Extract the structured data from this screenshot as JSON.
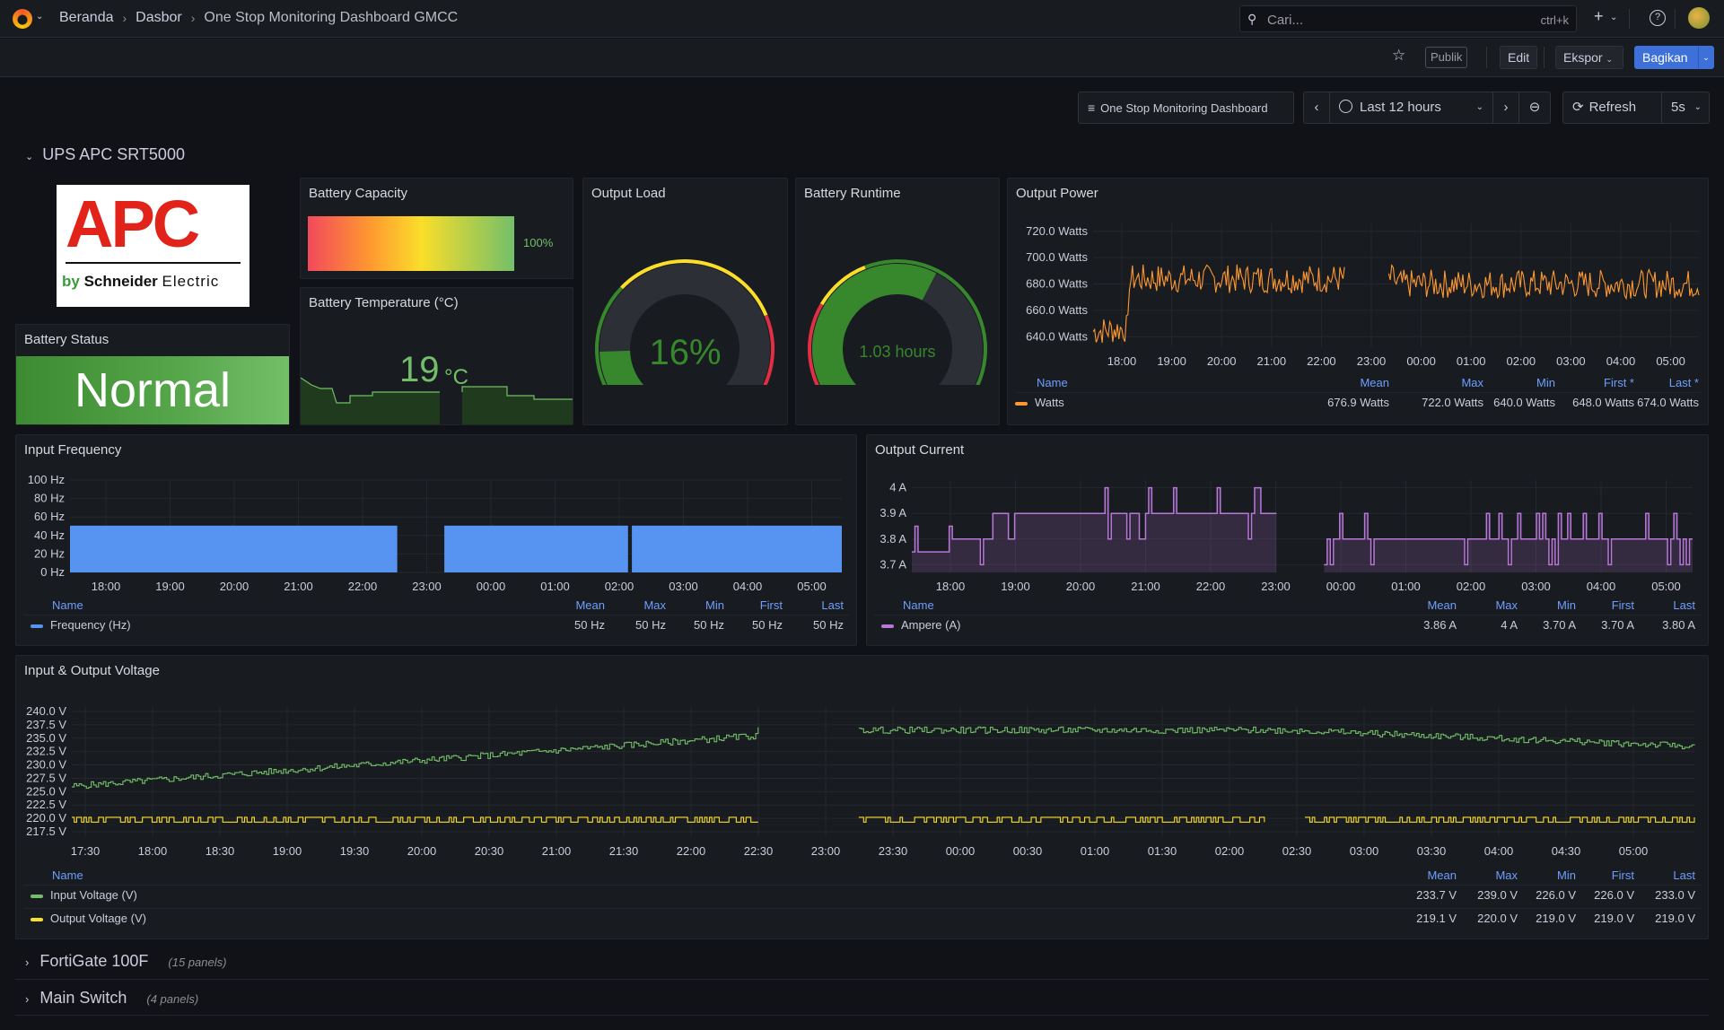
{
  "header": {
    "breadcrumbs": [
      "Beranda",
      "Dasbor",
      "One Stop Monitoring Dashboard GMCC"
    ],
    "search_placeholder": "Cari...",
    "search_shortcut": "ctrl+k"
  },
  "toolbar": {
    "public_badge": "Publik",
    "edit_label": "Edit",
    "export_label": "Ekspor",
    "share_label": "Bagikan"
  },
  "controls": {
    "dashboard_link": "One Stop Monitoring Dashboard",
    "time_range": "Last 12 hours",
    "refresh_label": "Refresh",
    "refresh_interval": "5s"
  },
  "rows": [
    {
      "title": "UPS APC SRT5000",
      "collapsed": false
    },
    {
      "title": "FortiGate 100F",
      "subtitle": "(15 panels)",
      "collapsed": true
    },
    {
      "title": "Main Switch",
      "subtitle": "(4 panels)",
      "collapsed": true
    }
  ],
  "logo": {
    "brand": "APC",
    "tagline_by": "by",
    "tagline_company": "Schneider",
    "tagline_suffix": "Electric"
  },
  "panels": {
    "battery_status": {
      "title": "Battery Status",
      "value": "Normal",
      "color": "#37872d"
    },
    "battery_capacity": {
      "title": "Battery Capacity",
      "value": "100%",
      "fraction": 1.0
    },
    "battery_temperature": {
      "title": "Battery Temperature (°C)",
      "value": "19",
      "unit": "°C",
      "color": "#73bf69"
    },
    "output_load": {
      "title": "Output Load",
      "value": "16%",
      "fraction": 0.16,
      "color": "#37872d"
    },
    "battery_runtime": {
      "title": "Battery Runtime",
      "value": "1.03 hours",
      "fraction": 0.6,
      "color": "#37872d"
    },
    "output_power": {
      "title": "Output Power",
      "y_ticks": [
        "720.0 Watts",
        "700.0 Watts",
        "680.0 Watts",
        "660.0 Watts",
        "640.0 Watts"
      ],
      "x_ticks": [
        "18:00",
        "19:00",
        "20:00",
        "21:00",
        "22:00",
        "23:00",
        "00:00",
        "01:00",
        "02:00",
        "03:00",
        "04:00",
        "05:00"
      ],
      "legend_headers": [
        "Name",
        "Last *",
        "First *",
        "Min",
        "Max",
        "Mean"
      ],
      "series": [
        {
          "name": "Watts",
          "color": "#ff9830",
          "stats": [
            "674.0 Watts",
            "648.0 Watts",
            "640.0 Watts",
            "722.0 Watts",
            "676.9 Watts"
          ]
        }
      ]
    },
    "input_frequency": {
      "title": "Input Frequency",
      "y_ticks": [
        "100 Hz",
        "80 Hz",
        "60 Hz",
        "40 Hz",
        "20 Hz",
        "0 Hz"
      ],
      "x_ticks": [
        "18:00",
        "19:00",
        "20:00",
        "21:00",
        "22:00",
        "23:00",
        "00:00",
        "01:00",
        "02:00",
        "03:00",
        "04:00",
        "05:00"
      ],
      "legend_headers": [
        "Name",
        "Last",
        "First",
        "Min",
        "Max",
        "Mean"
      ],
      "series": [
        {
          "name": "Frequency (Hz)",
          "color": "#5794f2",
          "stats": [
            "50 Hz",
            "50 Hz",
            "50 Hz",
            "50 Hz",
            "50 Hz"
          ]
        }
      ]
    },
    "output_current": {
      "title": "Output Current",
      "y_ticks": [
        "4 A",
        "3.9 A",
        "3.8 A",
        "3.7 A"
      ],
      "x_ticks": [
        "18:00",
        "19:00",
        "20:00",
        "21:00",
        "22:00",
        "23:00",
        "00:00",
        "01:00",
        "02:00",
        "03:00",
        "04:00",
        "05:00"
      ],
      "legend_headers": [
        "Name",
        "Last",
        "First",
        "Min",
        "Max",
        "Mean"
      ],
      "series": [
        {
          "name": "Ampere (A)",
          "color": "#b877d9",
          "stats": [
            "3.80 A",
            "3.70 A",
            "3.70 A",
            "4 A",
            "3.86 A"
          ]
        }
      ]
    },
    "voltage": {
      "title": "Input & Output Voltage",
      "y_ticks": [
        "240.0 V",
        "237.5 V",
        "235.0 V",
        "232.5 V",
        "230.0 V",
        "227.5 V",
        "225.0 V",
        "222.5 V",
        "220.0 V",
        "217.5 V"
      ],
      "x_ticks": [
        "17:30",
        "18:00",
        "18:30",
        "19:00",
        "19:30",
        "20:00",
        "20:30",
        "21:00",
        "21:30",
        "22:00",
        "22:30",
        "23:00",
        "23:30",
        "00:00",
        "00:30",
        "01:00",
        "01:30",
        "02:00",
        "02:30",
        "03:00",
        "03:30",
        "04:00",
        "04:30",
        "05:00"
      ],
      "legend_headers": [
        "Name",
        "Last",
        "First",
        "Min",
        "Max",
        "Mean"
      ],
      "series": [
        {
          "name": "Input Voltage (V)",
          "color": "#73bf69",
          "stats": [
            "233.0 V",
            "226.0 V",
            "226.0 V",
            "239.0 V",
            "233.7 V"
          ]
        },
        {
          "name": "Output Voltage (V)",
          "color": "#fade2a",
          "stats": [
            "219.0 V",
            "219.0 V",
            "219.0 V",
            "220.0 V",
            "219.1 V"
          ]
        }
      ]
    }
  },
  "chart_data": [
    {
      "type": "line",
      "title": "Output Power",
      "ylabel": "Watts",
      "ylim": [
        630,
        730
      ],
      "x": [
        "18:00",
        "19:00",
        "20:00",
        "21:00",
        "22:00",
        "23:00",
        "00:00",
        "01:00",
        "02:00",
        "03:00",
        "04:00",
        "05:00"
      ],
      "series": [
        {
          "name": "Watts",
          "values": [
            648,
            688,
            685,
            682,
            684,
            null,
            null,
            682,
            676,
            674,
            678,
            674
          ]
        }
      ]
    },
    {
      "type": "area",
      "title": "Input Frequency",
      "ylim": [
        0,
        100
      ],
      "x": [
        "18:00",
        "19:00",
        "20:00",
        "21:00",
        "22:00",
        "23:00",
        "00:00",
        "01:00",
        "02:00",
        "03:00",
        "04:00",
        "05:00"
      ],
      "series": [
        {
          "name": "Frequency (Hz)",
          "values": [
            50,
            50,
            50,
            50,
            50,
            50,
            null,
            50,
            50,
            50,
            50,
            50
          ]
        }
      ]
    },
    {
      "type": "line",
      "title": "Output Current",
      "ylim": [
        3.67,
        4.03
      ],
      "x": [
        "18:00",
        "19:00",
        "20:00",
        "21:00",
        "22:00",
        "23:00",
        "00:00",
        "01:00",
        "02:00",
        "03:00",
        "04:00",
        "05:00"
      ],
      "series": [
        {
          "name": "Ampere (A)",
          "values": [
            3.75,
            3.9,
            3.9,
            3.9,
            3.9,
            3.9,
            null,
            3.8,
            3.8,
            3.8,
            3.8,
            3.8
          ]
        }
      ]
    },
    {
      "type": "line",
      "title": "Input & Output Voltage",
      "ylim": [
        217,
        241
      ],
      "x": [
        "17:30",
        "18:30",
        "19:30",
        "20:30",
        "21:30",
        "22:30",
        "23:30",
        "00:00",
        "00:30",
        "01:30",
        "02:30",
        "03:30",
        "04:30",
        "05:00"
      ],
      "series": [
        {
          "name": "Input Voltage (V)",
          "values": [
            226,
            227,
            230,
            232,
            233,
            234.5,
            235.5,
            null,
            236.5,
            236.5,
            237,
            236,
            235,
            233
          ]
        },
        {
          "name": "Output Voltage (V)",
          "values": [
            219,
            219,
            219,
            219,
            219,
            219,
            219,
            null,
            219,
            219,
            219,
            219,
            219,
            219
          ]
        }
      ]
    }
  ]
}
